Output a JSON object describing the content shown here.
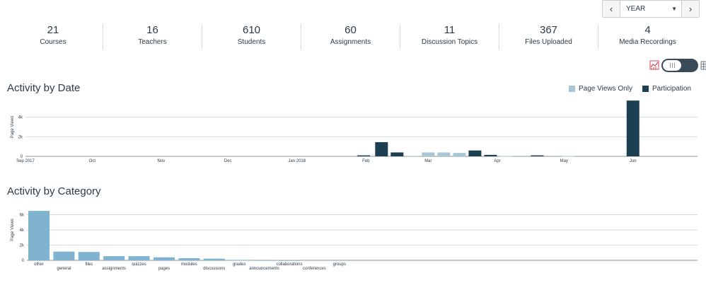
{
  "year_selector": {
    "value": "YEAR",
    "prev_icon": "chevron-left-icon",
    "next_icon": "chevron-right-icon"
  },
  "stats": [
    {
      "value": "21",
      "label": "Courses"
    },
    {
      "value": "16",
      "label": "Teachers"
    },
    {
      "value": "610",
      "label": "Students"
    },
    {
      "value": "60",
      "label": "Assignments"
    },
    {
      "value": "11",
      "label": "Discussion Topics"
    },
    {
      "value": "367",
      "label": "Files Uploaded"
    },
    {
      "value": "4",
      "label": "Media Recordings"
    }
  ],
  "view_toggle": {
    "left_icon": "graph-icon",
    "right_icon": "table-icon"
  },
  "activity_by_date": {
    "title": "Activity by Date",
    "legend": [
      {
        "label": "Page Views Only",
        "color": "#a9c6d6"
      },
      {
        "label": "Participation",
        "color": "#1d3f52"
      }
    ]
  },
  "activity_by_category": {
    "title": "Activity by Category"
  },
  "colors": {
    "light_bar": "#a9c6d6",
    "dark_bar": "#1d3f52",
    "category_bar": "#7fb3cf",
    "grid": "#d7dbde"
  },
  "chart_data": [
    {
      "type": "bar",
      "title": "Activity by Date",
      "ylabel": "Page Views",
      "ylim": [
        0,
        6000
      ],
      "yticks": [
        0,
        2000,
        4000
      ],
      "ytick_labels": [
        "0",
        "2k",
        "4k"
      ],
      "xtick_labels": [
        "Sep 2017",
        "Oct",
        "Nov",
        "Dec",
        "Jan 2018",
        "Feb",
        "Mar",
        "Apr",
        "May",
        "Jun"
      ],
      "series": [
        {
          "name": "Page Views Only",
          "values": [
            {
              "x": "2018-02-22",
              "y": 50
            },
            {
              "x": "2018-03-01",
              "y": 400
            },
            {
              "x": "2018-03-08",
              "y": 400
            },
            {
              "x": "2018-03-15",
              "y": 350
            },
            {
              "x": "2018-04-05",
              "y": 30
            },
            {
              "x": "2018-05-03",
              "y": 30
            }
          ]
        },
        {
          "name": "Participation",
          "values": [
            {
              "x": "2018-01-31",
              "y": 100
            },
            {
              "x": "2018-02-08",
              "y": 1450
            },
            {
              "x": "2018-02-15",
              "y": 400
            },
            {
              "x": "2018-03-22",
              "y": 600
            },
            {
              "x": "2018-03-29",
              "y": 150
            },
            {
              "x": "2018-04-19",
              "y": 100
            },
            {
              "x": "2018-06-01",
              "y": 5700
            }
          ]
        }
      ]
    },
    {
      "type": "bar",
      "title": "Activity by Category",
      "ylabel": "Page Views",
      "ylim": [
        0,
        8000
      ],
      "yticks": [
        0,
        2000,
        4000,
        6000
      ],
      "ytick_labels": [
        "0",
        "2k",
        "4k",
        "6k"
      ],
      "categories": [
        "other",
        "general",
        "files",
        "assignments",
        "quizzes",
        "pages",
        "modules",
        "discussions",
        "grades",
        "announcements",
        "collaborations",
        "conferences",
        "groups"
      ],
      "values": [
        6500,
        1150,
        1100,
        550,
        550,
        400,
        280,
        220,
        60,
        10,
        5,
        0,
        0
      ]
    }
  ]
}
